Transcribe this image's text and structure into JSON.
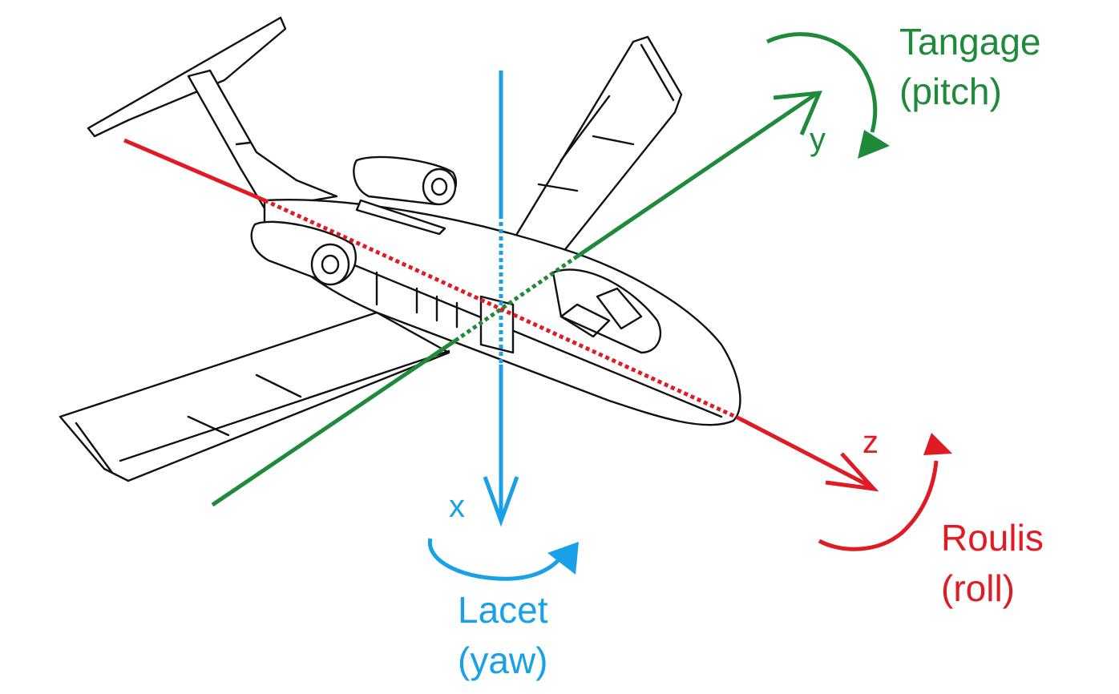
{
  "colors": {
    "yaw": "#1aa0e6",
    "pitch": "#1f8a3a",
    "roll": "#e01b24",
    "drawing": "#111111"
  },
  "axes": {
    "x": {
      "letter": "x"
    },
    "y": {
      "letter": "y"
    },
    "z": {
      "letter": "z"
    }
  },
  "rotations": {
    "yaw": {
      "name": "Lacet",
      "sub": "(yaw)"
    },
    "pitch": {
      "name": "Tangage",
      "sub": "(pitch)"
    },
    "roll": {
      "name": "Roulis",
      "sub": "(roll)"
    }
  },
  "illustration": {
    "subject": "business-jet-line-drawing"
  }
}
